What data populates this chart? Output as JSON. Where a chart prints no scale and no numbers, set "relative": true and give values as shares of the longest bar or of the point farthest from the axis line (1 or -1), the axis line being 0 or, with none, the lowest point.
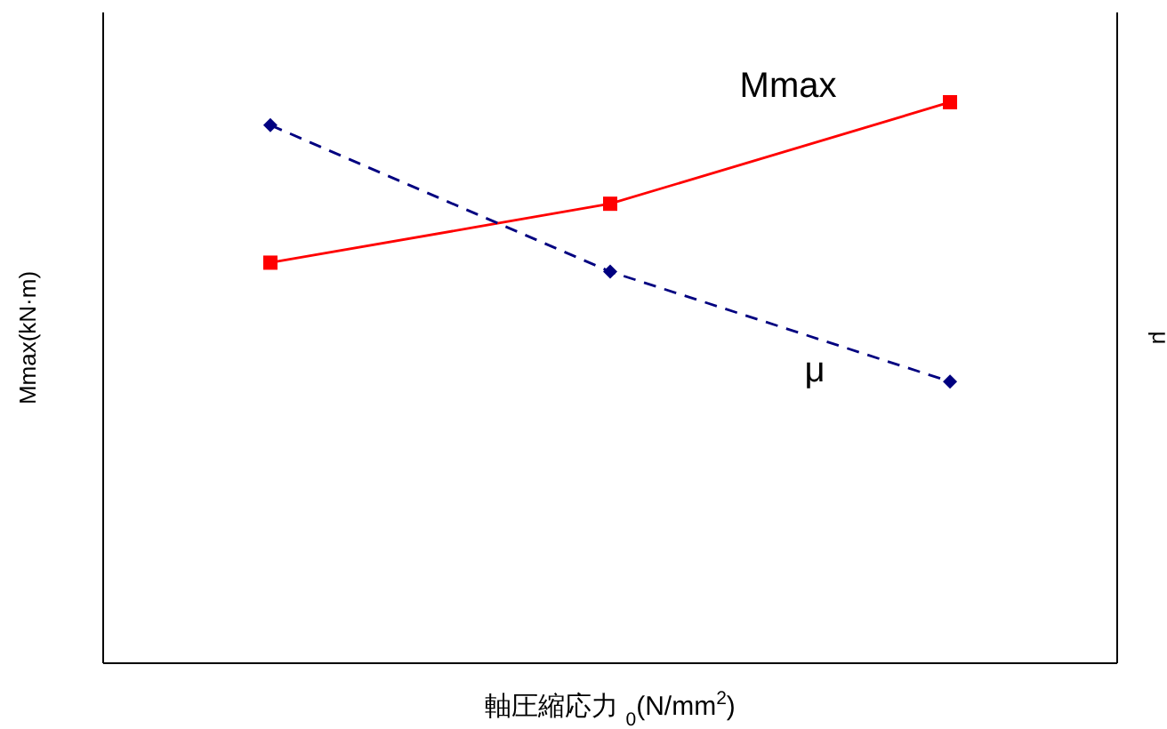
{
  "chart_data": {
    "type": "line",
    "relative": true,
    "categories": [
      null,
      null,
      null
    ],
    "xlabel": "軸圧縮応力   $_{0}$(N/mm$^{2}$)",
    "ylabel": "Mmax(kN·m)",
    "y2label": "μ",
    "legend": false,
    "series": [
      {
        "name": "Mmax",
        "color": "#ff0000",
        "values": [
          0.714,
          0.819,
          1
        ],
        "marker": "square",
        "line_style": "solid"
      },
      {
        "name": "μ",
        "color": "#000080",
        "values": [
          0.959,
          0.698,
          0.502
        ],
        "marker": "diamond",
        "line_style": "dashed"
      }
    ]
  }
}
